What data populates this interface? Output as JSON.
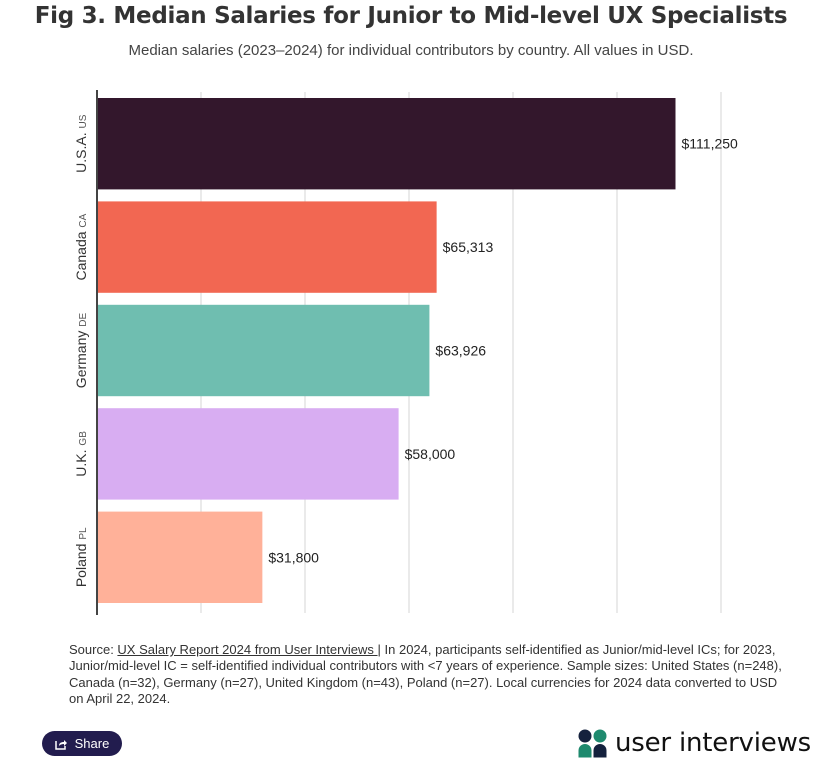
{
  "header": {
    "title": "Fig 3. Median Salaries for Junior to Mid-level UX Specialists",
    "subtitle": "Median salaries (2023–2024) for individual contributors by country. All values in USD."
  },
  "chart_data": {
    "type": "bar",
    "orientation": "horizontal",
    "title": "Fig 3. Median Salaries for Junior to Mid-level UX Specialists",
    "subtitle": "Median salaries (2023–2024) for individual contributors by country. All values in USD.",
    "xlabel": "",
    "ylabel": "",
    "xlim": [
      0,
      120000
    ],
    "grid": true,
    "grid_step": 20000,
    "categories": [
      {
        "name": "U.S.A.",
        "code": "US"
      },
      {
        "name": "Canada",
        "code": "CA"
      },
      {
        "name": "Germany",
        "code": "DE"
      },
      {
        "name": "U.K.",
        "code": "GB"
      },
      {
        "name": "Poland",
        "code": "PL"
      }
    ],
    "values": [
      111250,
      65313,
      63926,
      58000,
      31800
    ],
    "value_labels": [
      "$111,250",
      "$65,313",
      "$63,926",
      "$58,000",
      "$31,800"
    ],
    "colors": [
      "#33172c",
      "#f26752",
      "#6fbeb0",
      "#d8adf2",
      "#ffb199"
    ]
  },
  "footer": {
    "source_prefix": "Source: ",
    "source_link": "UX Salary Report 2024 from User Interviews ",
    "source_rest": "| In 2024, participants self-identified as Junior/mid-level ICs; for 2023, Junior/mid-level IC = self-identified individual contributors with <7 years of experience. Sample sizes: United States (n=248), Canada (n=32), Germany (n=27), United Kingdom (n=43), Poland (n=27). Local currencies for 2024 data converted to USD on April 22, 2024.",
    "share_label": "Share",
    "logo_text": "user interviews",
    "colors": {
      "share_bg": "#221c4e",
      "logo_green": "#1e8a6e",
      "logo_navy": "#14213d"
    }
  }
}
